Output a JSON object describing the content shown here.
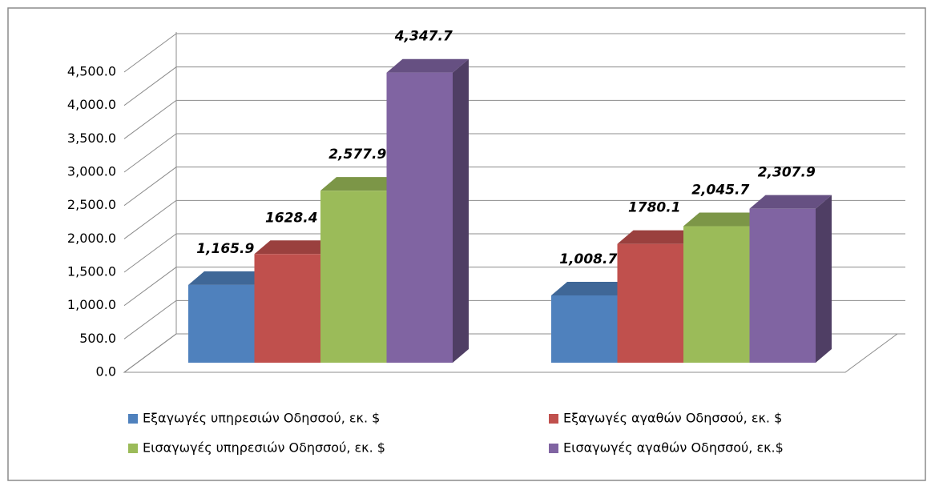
{
  "chart_data": {
    "type": "bar3d",
    "categories": [
      null,
      null
    ],
    "series": [
      {
        "name": "Εξαγωγές υπηρεσιών Οδησσού, εκ. $",
        "color": "#4f81bd",
        "values": [
          1165.9,
          1008.7
        ],
        "value_labels": [
          "1,165.9",
          "1,008.7"
        ]
      },
      {
        "name": "Εξαγωγές αγαθών Οδησσού, εκ. $",
        "color": "#c0504d",
        "values": [
          1628.4,
          1780.1
        ],
        "value_labels": [
          "1628.4",
          "1780.1"
        ]
      },
      {
        "name": "Εισαγωγές υπηρεσιών Οδησσού, εκ. $",
        "color": "#9bbb59",
        "values": [
          2577.9,
          2045.7
        ],
        "value_labels": [
          "2,577.9",
          "2,045.7"
        ]
      },
      {
        "name": "Εισαγωγές αγαθών Οδησσού, εκ.$",
        "color": "#8064a2",
        "values": [
          4347.7,
          2307.9
        ],
        "value_labels": [
          "4,347.7",
          "2,307.9"
        ]
      }
    ],
    "ylim": [
      0,
      4500
    ],
    "yticks": [
      {
        "value": 0,
        "label": "0.0"
      },
      {
        "value": 500,
        "label": "500.0"
      },
      {
        "value": 1000,
        "label": "1,000.0"
      },
      {
        "value": 1500,
        "label": "1,500.0"
      },
      {
        "value": 2000,
        "label": "2,000.0"
      },
      {
        "value": 2500,
        "label": "2,500.0"
      },
      {
        "value": 3000,
        "label": "3,000.0"
      },
      {
        "value": 3500,
        "label": "3,500.0"
      },
      {
        "value": 4000,
        "label": "4,000.0"
      },
      {
        "value": 4500,
        "label": "4,500.0"
      }
    ],
    "grid": true,
    "legend": "bottom"
  }
}
